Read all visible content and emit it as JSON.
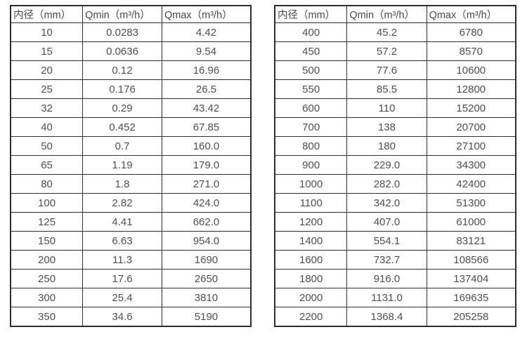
{
  "colors": {
    "background": "#ffffff",
    "border": "#2d2d2d",
    "text": "#4f4f4f"
  },
  "tables": [
    {
      "name": "flow-table-small-diameters",
      "headers": [
        "内径（mm）",
        "Qmin（m³/h）",
        "Qmax（m³/h）"
      ],
      "rows": [
        [
          "10",
          "0.0283",
          "4.42"
        ],
        [
          "15",
          "0.0636",
          "9.54"
        ],
        [
          "20",
          "0.12",
          "16.96"
        ],
        [
          "25",
          "0.176",
          "26.5"
        ],
        [
          "32",
          "0.29",
          "43.42"
        ],
        [
          "40",
          "0.452",
          "67.85"
        ],
        [
          "50",
          "0.7",
          "160.0"
        ],
        [
          "65",
          "1.19",
          "179.0"
        ],
        [
          "80",
          "1.8",
          "271.0"
        ],
        [
          "100",
          "2.82",
          "424.0"
        ],
        [
          "125",
          "4.41",
          "662.0"
        ],
        [
          "150",
          "6.63",
          "954.0"
        ],
        [
          "200",
          "11.3",
          "1690"
        ],
        [
          "250",
          "17.6",
          "2650"
        ],
        [
          "300",
          "25.4",
          "3810"
        ],
        [
          "350",
          "34.6",
          "5190"
        ]
      ]
    },
    {
      "name": "flow-table-large-diameters",
      "headers": [
        "内径（mm）",
        "Qmin（m³/h）",
        "Qmax（m³/h）"
      ],
      "rows": [
        [
          "400",
          "45.2",
          "6780"
        ],
        [
          "450",
          "57.2",
          "8570"
        ],
        [
          "500",
          "77.6",
          "10600"
        ],
        [
          "550",
          "85.5",
          "12800"
        ],
        [
          "600",
          "110",
          "15200"
        ],
        [
          "700",
          "138",
          "20700"
        ],
        [
          "800",
          "180",
          "27100"
        ],
        [
          "900",
          "229.0",
          "34300"
        ],
        [
          "1000",
          "282.0",
          "42400"
        ],
        [
          "1100",
          "342.0",
          "51300"
        ],
        [
          "1200",
          "407.0",
          "61000"
        ],
        [
          "1400",
          "554.1",
          "83121"
        ],
        [
          "1600",
          "732.7",
          "108566"
        ],
        [
          "1800",
          "916.0",
          "137404"
        ],
        [
          "2000",
          "1131.0",
          "169635"
        ],
        [
          "2200",
          "1368.4",
          "205258"
        ]
      ]
    }
  ]
}
